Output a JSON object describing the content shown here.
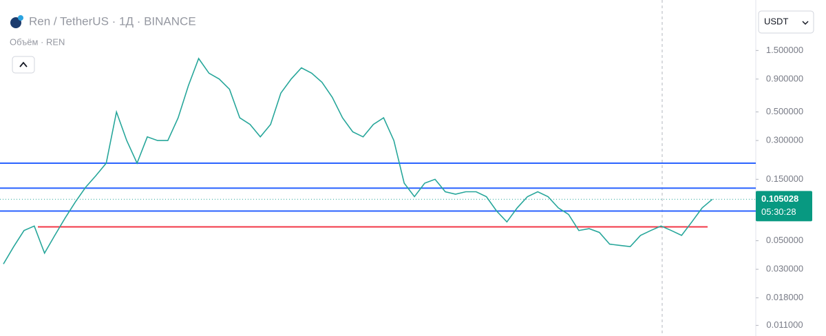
{
  "chart_data": {
    "type": "line",
    "title": "Ren / TetherUS · 1Д · BINANCE",
    "subtitle": "Объём · REN",
    "currency": "USDT",
    "log_scale": true,
    "color": "#26a69a",
    "values": [
      0.033,
      0.045,
      0.06,
      0.065,
      0.04,
      0.055,
      0.075,
      0.1,
      0.13,
      0.16,
      0.2,
      0.5,
      0.3,
      0.2,
      0.32,
      0.3,
      0.3,
      0.45,
      0.8,
      1.3,
      1.0,
      0.9,
      0.75,
      0.45,
      0.4,
      0.32,
      0.4,
      0.7,
      0.9,
      1.1,
      1.0,
      0.85,
      0.65,
      0.45,
      0.35,
      0.32,
      0.4,
      0.45,
      0.3,
      0.14,
      0.11,
      0.14,
      0.15,
      0.12,
      0.115,
      0.12,
      0.12,
      0.11,
      0.085,
      0.07,
      0.09,
      0.11,
      0.12,
      0.11,
      0.09,
      0.08,
      0.06,
      0.062,
      0.058,
      0.047,
      0.046,
      0.045,
      0.055,
      0.06,
      0.065,
      0.06,
      0.055,
      0.07,
      0.09,
      0.105
    ],
    "ylim": [
      0.0091,
      3.7
    ],
    "yticks": [
      {
        "value": 1.5,
        "label": "1.500000"
      },
      {
        "value": 0.9,
        "label": "0.900000"
      },
      {
        "value": 0.5,
        "label": "0.500000"
      },
      {
        "value": 0.3,
        "label": "0.300000"
      },
      {
        "value": 0.15,
        "label": "0.150000"
      },
      {
        "value": 0.05,
        "label": "0.050000"
      },
      {
        "value": 0.03,
        "label": "0.030000"
      },
      {
        "value": 0.018,
        "label": "0.018000"
      },
      {
        "value": 0.011,
        "label": "0.011000"
      }
    ],
    "levels": [
      {
        "value": 0.2,
        "color": "#2962ff"
      },
      {
        "value": 0.128,
        "color": "#2962ff"
      },
      {
        "value": 0.085,
        "color": "#2962ff"
      },
      {
        "value": 0.064,
        "color": "#f23645"
      }
    ],
    "current_price": 0.105028,
    "countdown": "05:30:28"
  }
}
